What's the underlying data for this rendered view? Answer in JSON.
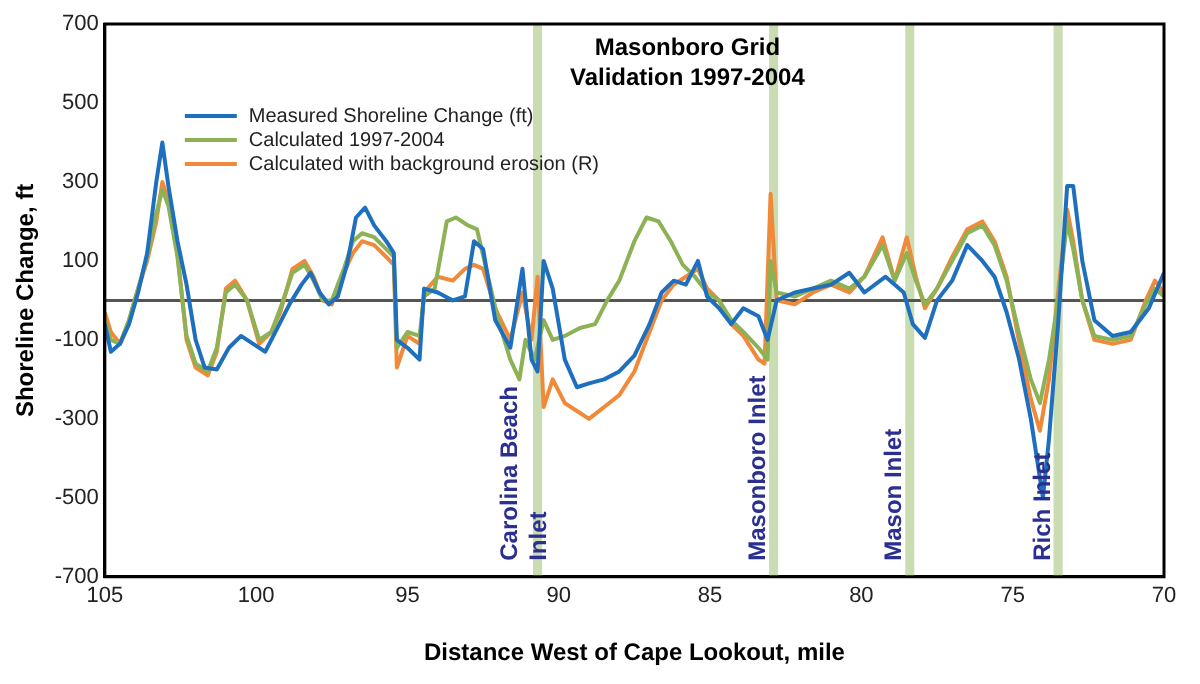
{
  "chart_data": {
    "type": "line",
    "title": "Masonboro Grid\nValidation 1997-2004",
    "xlabel": "Distance West of Cape Lookout, mile",
    "ylabel": "Shoreline Change, ft",
    "xlim": [
      105,
      70
    ],
    "xticks": [
      105,
      100,
      95,
      90,
      85,
      80,
      75,
      70
    ],
    "ylim": [
      -700,
      700
    ],
    "yticks": [
      -700,
      -500,
      -300,
      -100,
      100,
      300,
      500,
      700
    ],
    "legend": "top left",
    "line_style": "solid",
    "ref_lines": [
      {
        "axis": "y",
        "value": 0,
        "color": "#555555"
      }
    ],
    "bands": [
      {
        "axis": "x",
        "from": 90.85,
        "to": 90.55,
        "label": "Carolina Beach\nInlet",
        "color": "#c9dcb2"
      },
      {
        "axis": "x",
        "from": 83.05,
        "to": 82.75,
        "label": "Masonboro Inlet",
        "color": "#c9dcb2"
      },
      {
        "axis": "x",
        "from": 78.55,
        "to": 78.25,
        "label": "Mason Inlet",
        "color": "#c9dcb2"
      },
      {
        "axis": "x",
        "from": 73.65,
        "to": 73.35,
        "label": "Rich Inlet",
        "color": "#c9dcb2"
      }
    ],
    "series": [
      {
        "name": "Measured Shoreline Change (ft)",
        "color": "#1f6fbf",
        "x": [
          105,
          104.8,
          104.5,
          104.2,
          103.9,
          103.6,
          103.3,
          103.1,
          102.9,
          102.6,
          102.3,
          102,
          101.7,
          101.3,
          100.9,
          100.5,
          100.1,
          99.7,
          99.3,
          98.9,
          98.5,
          98.2,
          97.9,
          97.6,
          97.3,
          97,
          96.7,
          96.4,
          96.1,
          95.7,
          95.45,
          95.35,
          95,
          94.6,
          94.45,
          94,
          93.5,
          93.1,
          92.8,
          92.5,
          92.1,
          91.6,
          91.2,
          90.9,
          90.7,
          90.5,
          90.2,
          89.8,
          89.4,
          89,
          88.5,
          88,
          87.5,
          87,
          86.6,
          86.2,
          85.8,
          85.4,
          85.1,
          84.7,
          84.3,
          83.9,
          83.4,
          83.1,
          82.8,
          82.2,
          81.6,
          81,
          80.4,
          79.9,
          79.2,
          78.6,
          78.3,
          77.9,
          77.5,
          77,
          76.5,
          76,
          75.6,
          75.2,
          74.8,
          74.4,
          74,
          73.8,
          73.5,
          73.2,
          73,
          72.7,
          72.3,
          71.7,
          71.1,
          70.5,
          70
        ],
        "values": [
          -60,
          -130,
          -110,
          -60,
          20,
          120,
          300,
          400,
          290,
          150,
          40,
          -100,
          -170,
          -175,
          -120,
          -90,
          -110,
          -130,
          -70,
          -10,
          40,
          70,
          20,
          -10,
          10,
          90,
          210,
          235,
          190,
          150,
          120,
          -100,
          -120,
          -150,
          30,
          20,
          0,
          10,
          150,
          130,
          -50,
          -120,
          80,
          -150,
          -180,
          100,
          30,
          -150,
          -220,
          -210,
          -200,
          -180,
          -140,
          -60,
          20,
          50,
          40,
          100,
          10,
          -20,
          -60,
          -20,
          -40,
          -100,
          0,
          20,
          30,
          40,
          70,
          20,
          60,
          20,
          -60,
          -95,
          0,
          50,
          140,
          100,
          60,
          -30,
          -145,
          -300,
          -500,
          -350,
          -60,
          290,
          290,
          100,
          -50,
          -90,
          -80,
          -20,
          70
        ]
      },
      {
        "name": "Calculated 1997-2004",
        "color": "#8db255",
        "x": [
          105,
          104.8,
          104.5,
          104.2,
          103.9,
          103.6,
          103.3,
          103.1,
          102.9,
          102.6,
          102.3,
          102,
          101.6,
          101.3,
          101,
          100.7,
          100.3,
          99.9,
          99.5,
          99.2,
          98.8,
          98.4,
          98.1,
          97.8,
          97.5,
          97.1,
          96.8,
          96.5,
          96.1,
          95.7,
          95.45,
          95.35,
          95,
          94.6,
          94.45,
          94.1,
          93.7,
          93.4,
          93,
          92.7,
          92.4,
          92,
          91.6,
          91.3,
          91.1,
          90.8,
          90.5,
          90.2,
          89.8,
          89.3,
          88.8,
          88.4,
          88,
          87.5,
          87.1,
          86.7,
          86.3,
          85.9,
          85.5,
          85.1,
          84.7,
          84.3,
          83.9,
          83.4,
          83.1,
          83,
          82.8,
          82.2,
          81.6,
          81,
          80.4,
          79.9,
          79.3,
          78.9,
          78.5,
          78.2,
          77.9,
          77.5,
          77,
          76.5,
          76,
          75.6,
          75.2,
          74.8,
          74.4,
          74.1,
          73.8,
          73.5,
          73.2,
          73,
          72.7,
          72.3,
          71.7,
          71.1,
          70.6,
          70.3,
          70
        ],
        "values": [
          -50,
          -100,
          -110,
          -50,
          30,
          110,
          220,
          280,
          240,
          110,
          -90,
          -160,
          -180,
          -120,
          20,
          40,
          0,
          -100,
          -80,
          -20,
          70,
          90,
          50,
          0,
          0,
          80,
          150,
          170,
          160,
          130,
          110,
          -120,
          -80,
          -90,
          10,
          30,
          200,
          210,
          190,
          180,
          80,
          -50,
          -150,
          -200,
          -100,
          -150,
          -50,
          -100,
          -90,
          -70,
          -60,
          0,
          50,
          150,
          210,
          200,
          150,
          90,
          60,
          20,
          0,
          -50,
          -80,
          -120,
          -150,
          100,
          20,
          10,
          30,
          50,
          30,
          60,
          140,
          50,
          120,
          50,
          -10,
          30,
          100,
          170,
          190,
          140,
          50,
          -80,
          -200,
          -260,
          -150,
          0,
          200,
          130,
          0,
          -90,
          -100,
          -90,
          -10,
          30,
          10
        ]
      },
      {
        "name": "Calculated with background erosion (R)",
        "color": "#f08a3a",
        "x": [
          105,
          104.8,
          104.5,
          104.2,
          103.9,
          103.6,
          103.3,
          103.1,
          102.9,
          102.6,
          102.3,
          102,
          101.6,
          101.3,
          101,
          100.7,
          100.3,
          99.9,
          99.5,
          99.2,
          98.8,
          98.4,
          98.1,
          97.8,
          97.5,
          97.1,
          96.8,
          96.5,
          96.1,
          95.7,
          95.45,
          95.35,
          95,
          94.6,
          94.45,
          94,
          93.5,
          93.1,
          92.8,
          92.5,
          92.1,
          91.6,
          91.2,
          90.9,
          90.7,
          90.5,
          90.2,
          89.8,
          89.4,
          89,
          88.5,
          88,
          87.5,
          87,
          86.6,
          86.2,
          85.8,
          85.4,
          85.1,
          84.7,
          84.3,
          83.9,
          83.4,
          83.2,
          83,
          82.8,
          82.2,
          81.6,
          81,
          80.4,
          79.9,
          79.3,
          78.9,
          78.5,
          78.2,
          77.9,
          77.5,
          77,
          76.5,
          76,
          75.6,
          75.2,
          74.8,
          74.4,
          74.1,
          73.8,
          73.5,
          73.2,
          73,
          72.7,
          72.3,
          71.7,
          71.1,
          70.6,
          70.3,
          70
        ],
        "values": [
          -30,
          -80,
          -110,
          -50,
          30,
          100,
          200,
          300,
          250,
          120,
          -100,
          -170,
          -190,
          -130,
          30,
          50,
          0,
          -110,
          -80,
          -30,
          80,
          100,
          60,
          0,
          -10,
          70,
          120,
          150,
          140,
          110,
          90,
          -170,
          -90,
          -110,
          20,
          60,
          50,
          80,
          90,
          80,
          -20,
          -100,
          20,
          -100,
          60,
          -270,
          -200,
          -260,
          -280,
          -300,
          -270,
          -240,
          -180,
          -80,
          0,
          40,
          60,
          80,
          30,
          0,
          -60,
          -90,
          -150,
          -160,
          270,
          0,
          -10,
          20,
          40,
          20,
          60,
          160,
          50,
          160,
          60,
          -20,
          30,
          110,
          180,
          200,
          150,
          60,
          -100,
          -250,
          -330,
          -200,
          20,
          230,
          150,
          0,
          -100,
          -110,
          -100,
          0,
          50,
          20
        ]
      }
    ]
  }
}
